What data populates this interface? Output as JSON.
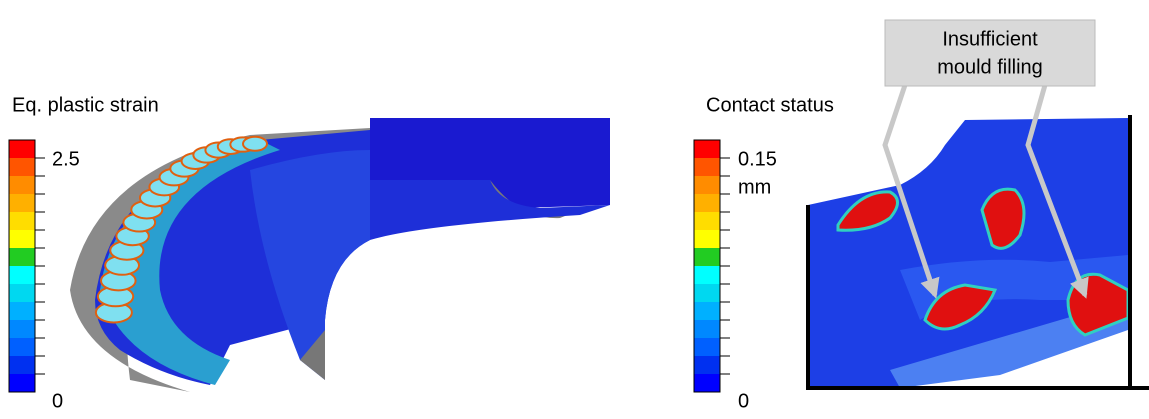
{
  "left_panel": {
    "title": "Eq. plastic strain",
    "scale_max": "2.5",
    "scale_min": "0"
  },
  "right_panel": {
    "title": "Contact status",
    "scale_max": "0.15",
    "scale_unit": "mm",
    "scale_min": "0",
    "callout": {
      "lines": [
        "Insufficient",
        "mould filling"
      ]
    }
  }
}
